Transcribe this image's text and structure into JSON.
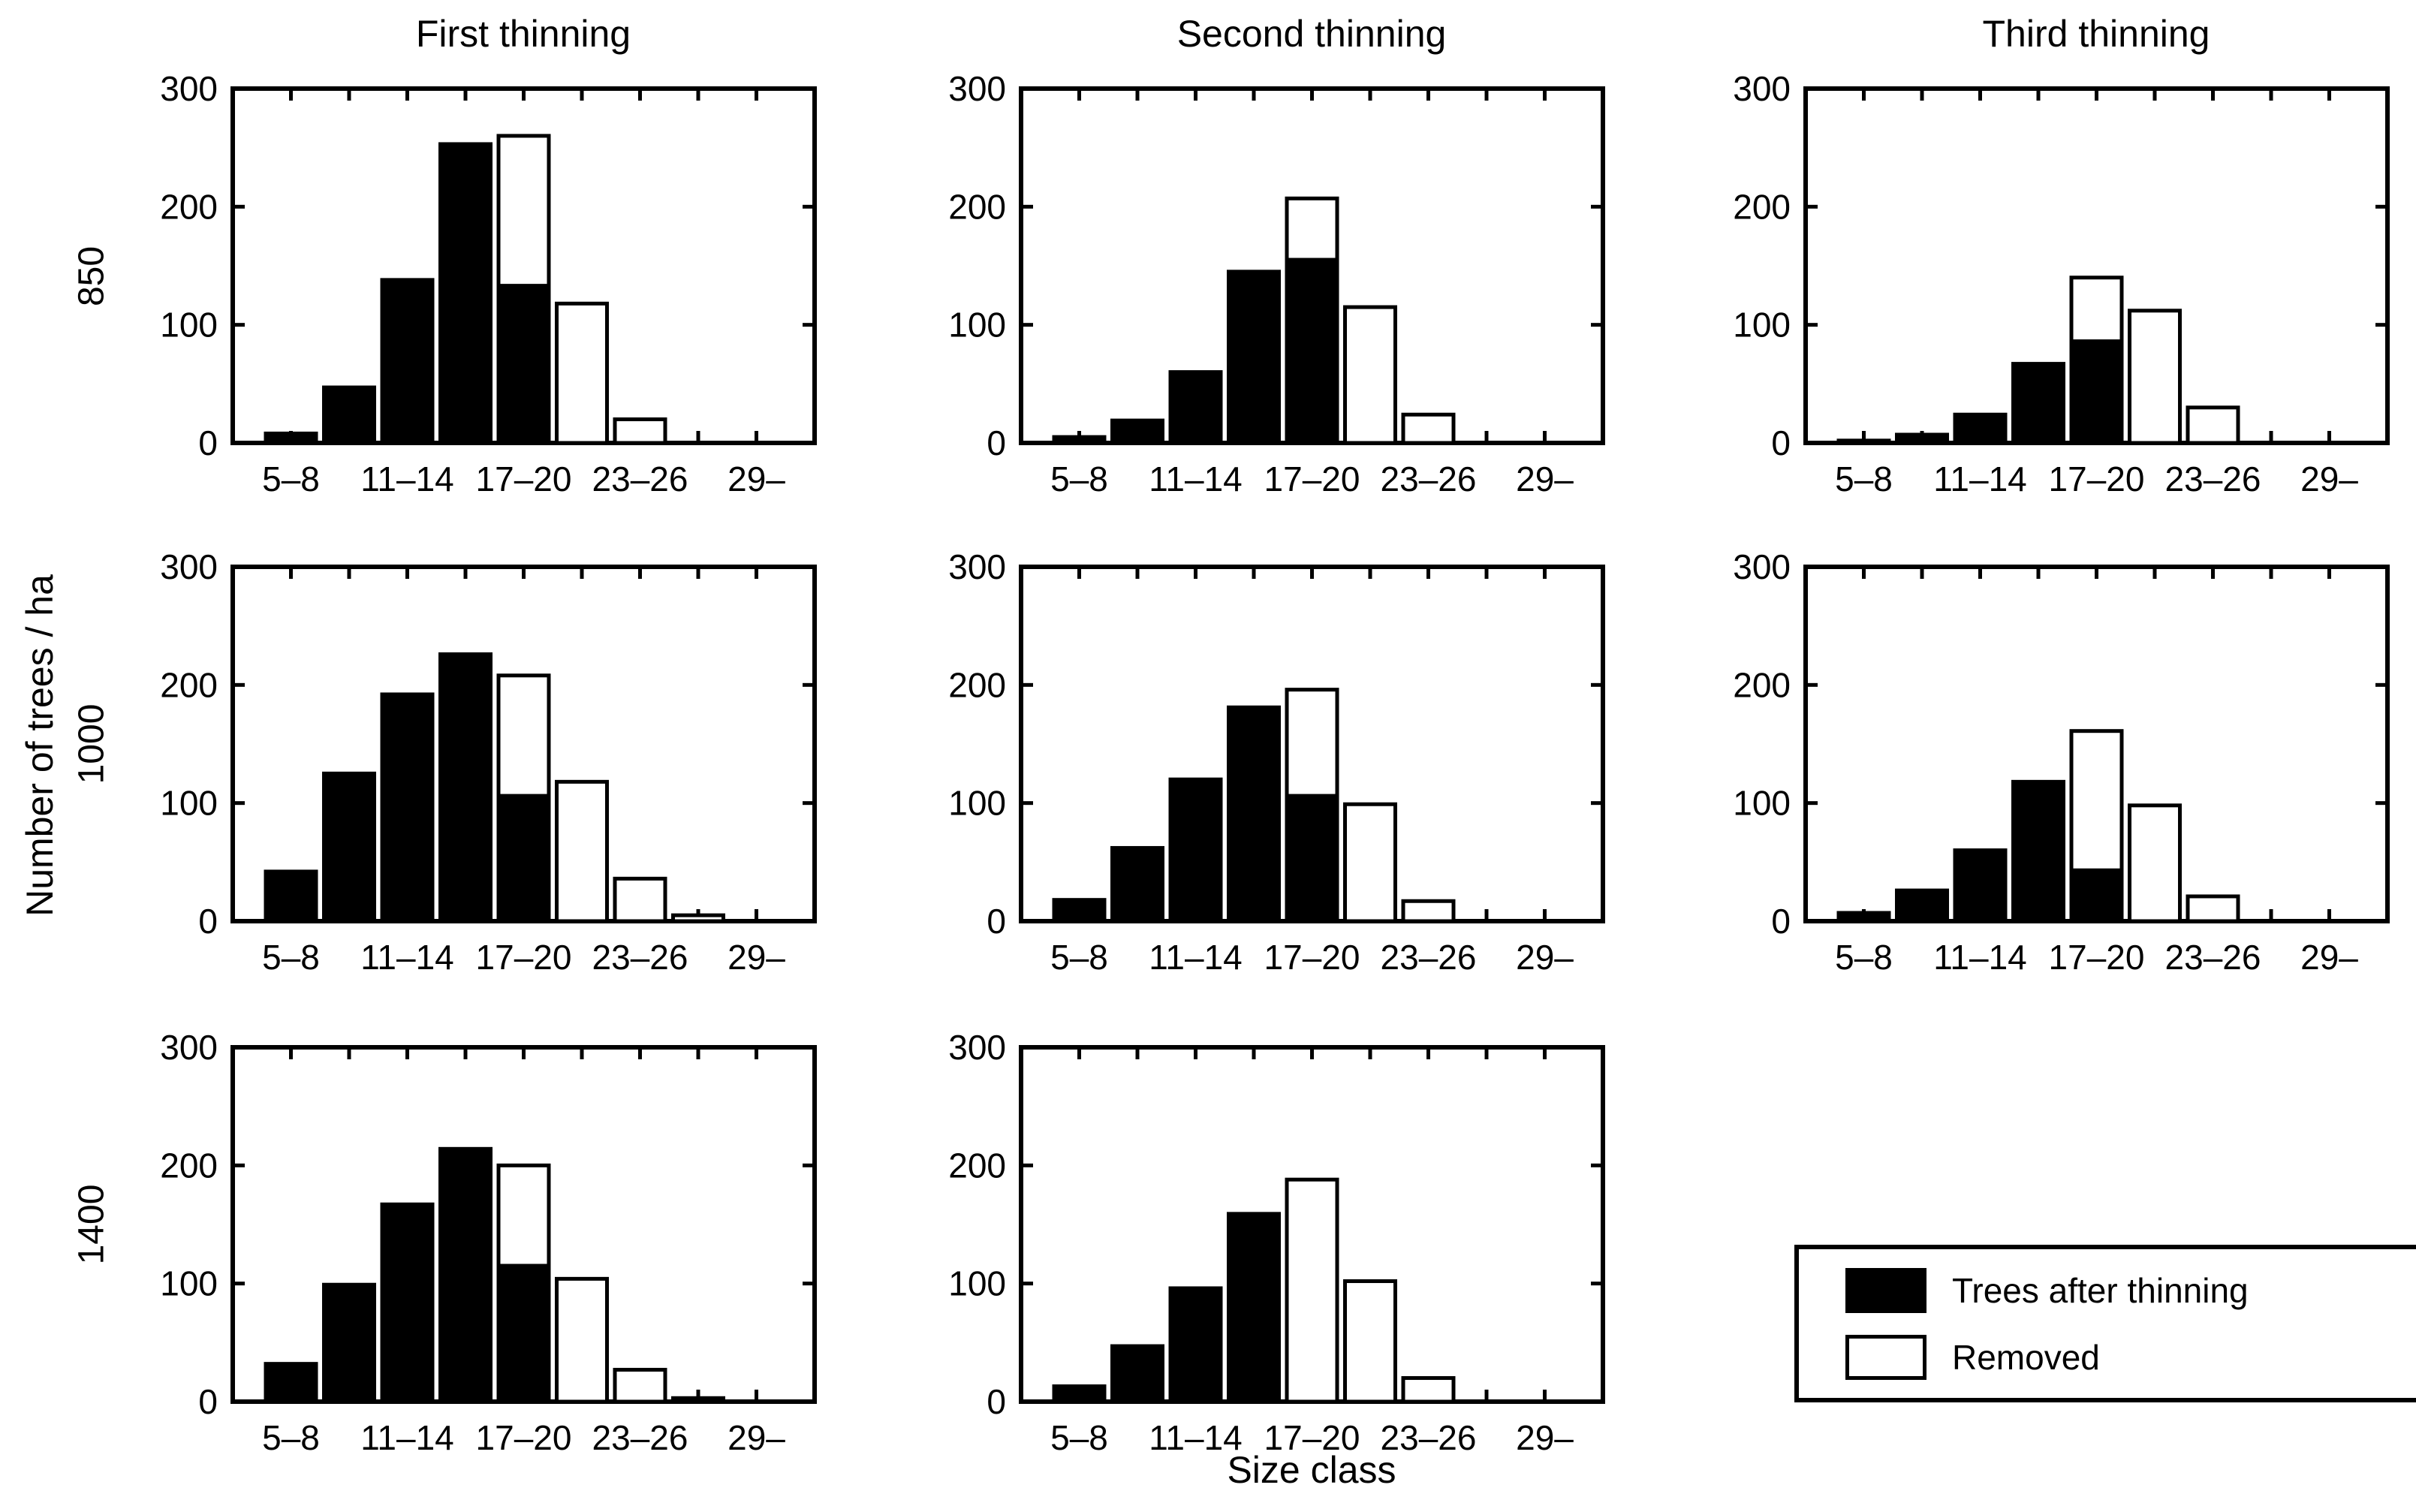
{
  "page": {
    "background_color": "#ffffff",
    "foreground_color": "#000000"
  },
  "chart_data": {
    "type": "bar",
    "subtype": "stacked-histogram-small-multiples",
    "grid": "3 columns (thinning stage) x 3 rows (stand density); bottom-right cell holds legend",
    "title": "",
    "xlabel": "Size class",
    "ylabel": "Number of trees / ha",
    "ylim": [
      0,
      300
    ],
    "yticks": [
      "0",
      "100",
      "200",
      "300"
    ],
    "x_slots": 9,
    "xtick_labels": [
      "5–8",
      "11–14",
      "17–20",
      "23–26",
      "29–"
    ],
    "xtick_slot_positions": [
      1,
      3,
      5,
      7,
      9
    ],
    "grid_lines": "off",
    "columns": [
      "First thinning",
      "Second thinning",
      "Third thinning"
    ],
    "rows": [
      "850",
      "1000",
      "1400"
    ],
    "legend": {
      "position": "bottom-right cell",
      "items": [
        {
          "label": "Trees after thinning",
          "fill": "#000000"
        },
        {
          "label": "Removed",
          "fill": "#ffffff"
        }
      ]
    },
    "series_note": "after = black stacked bottom segment (Trees after thinning); removed = white outlined top segment (Removed); 9 size-class slots per panel",
    "panels": [
      {
        "stand_density": "850",
        "thinning": "First thinning",
        "after": [
          8,
          47,
          138,
          253,
          133,
          0,
          0,
          0,
          0
        ],
        "removed": [
          0,
          0,
          0,
          0,
          127,
          118,
          20,
          0,
          0
        ]
      },
      {
        "stand_density": "850",
        "thinning": "Second thinning",
        "after": [
          5,
          19,
          60,
          145,
          155,
          0,
          0,
          0,
          0
        ],
        "removed": [
          0,
          0,
          0,
          0,
          52,
          115,
          24,
          0,
          0
        ]
      },
      {
        "stand_density": "850",
        "thinning": "Third thinning",
        "after": [
          2,
          7,
          24,
          67,
          86,
          0,
          0,
          0,
          0
        ],
        "removed": [
          0,
          0,
          0,
          0,
          54,
          112,
          30,
          0,
          0
        ]
      },
      {
        "stand_density": "1000",
        "thinning": "First thinning",
        "after": [
          42,
          125,
          192,
          226,
          106,
          0,
          0,
          0,
          0
        ],
        "removed": [
          0,
          0,
          0,
          0,
          102,
          118,
          36,
          5,
          0
        ]
      },
      {
        "stand_density": "1000",
        "thinning": "Second thinning",
        "after": [
          18,
          62,
          120,
          181,
          106,
          0,
          0,
          0,
          0
        ],
        "removed": [
          0,
          0,
          0,
          0,
          90,
          99,
          17,
          0,
          0
        ]
      },
      {
        "stand_density": "1000",
        "thinning": "Third thinning",
        "after": [
          7,
          26,
          60,
          118,
          43,
          0,
          0,
          0,
          0
        ],
        "removed": [
          0,
          0,
          0,
          0,
          118,
          98,
          21,
          0,
          0
        ]
      },
      {
        "stand_density": "1400",
        "thinning": "First thinning",
        "after": [
          32,
          99,
          167,
          214,
          115,
          0,
          0,
          3,
          0
        ],
        "removed": [
          0,
          0,
          0,
          0,
          85,
          104,
          27,
          0,
          0
        ]
      },
      {
        "stand_density": "1400",
        "thinning": "Second thinning",
        "after": [
          13,
          47,
          96,
          159,
          0,
          0,
          0,
          0,
          0
        ],
        "removed": [
          0,
          0,
          0,
          0,
          188,
          102,
          20,
          0,
          0
        ]
      }
    ]
  }
}
